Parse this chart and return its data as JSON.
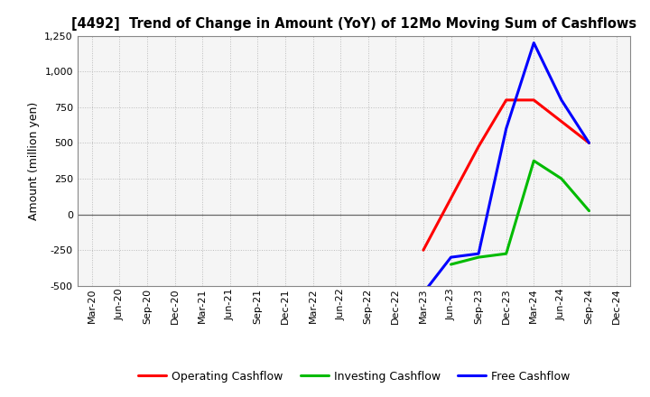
{
  "title": "[4492]  Trend of Change in Amount (YoY) of 12Mo Moving Sum of Cashflows",
  "ylabel": "Amount (million yen)",
  "ylim": [
    -500,
    1250
  ],
  "yticks": [
    -500,
    -250,
    0,
    250,
    500,
    750,
    1000,
    1250
  ],
  "x_labels": [
    "Mar-20",
    "Jun-20",
    "Sep-20",
    "Dec-20",
    "Mar-21",
    "Jun-21",
    "Sep-21",
    "Dec-21",
    "Mar-22",
    "Jun-22",
    "Sep-22",
    "Dec-22",
    "Mar-23",
    "Jun-23",
    "Sep-23",
    "Dec-23",
    "Mar-24",
    "Jun-24",
    "Sep-24",
    "Dec-24"
  ],
  "operating_x": [
    12,
    14,
    15,
    16,
    18
  ],
  "operating_y": [
    -250,
    475,
    800,
    800,
    500
  ],
  "investing_x": [
    13,
    14,
    15,
    16,
    17,
    18
  ],
  "investing_y": [
    -350,
    -300,
    -275,
    375,
    250,
    25
  ],
  "free_x": [
    12,
    13,
    14,
    15,
    16,
    17,
    18
  ],
  "free_y": [
    -550,
    -300,
    -275,
    600,
    1200,
    800,
    500
  ],
  "operating_color": "#ff0000",
  "investing_color": "#00bb00",
  "free_color": "#0000ff",
  "background_color": "#ffffff",
  "plot_bg_color": "#f5f5f5",
  "grid_color": "#bbbbbb",
  "line_width": 2.2,
  "legend_labels": [
    "Operating Cashflow",
    "Investing Cashflow",
    "Free Cashflow"
  ],
  "title_fontsize": 10.5,
  "tick_fontsize": 8,
  "ylabel_fontsize": 9
}
